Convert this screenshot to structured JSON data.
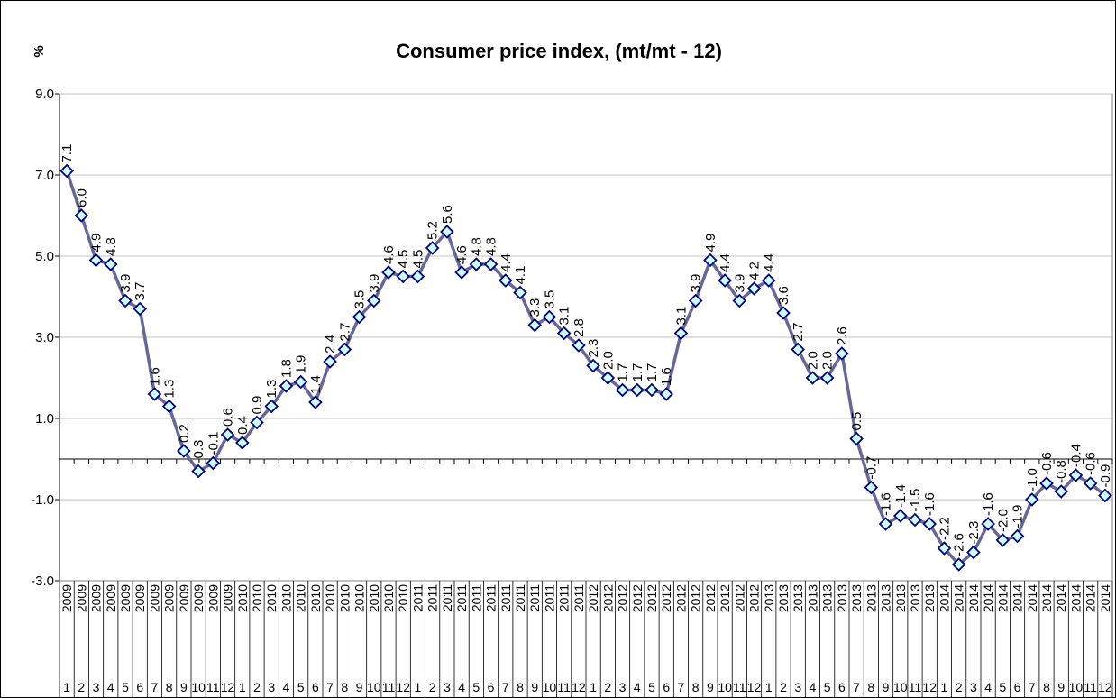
{
  "chart_data": {
    "type": "line",
    "title": "Consumer price index, (mt/mt - 12)",
    "y_label": "%",
    "categories": [
      "1",
      "2",
      "3",
      "4",
      "5",
      "6",
      "7",
      "8",
      "9",
      "10",
      "11",
      "12",
      "1",
      "2",
      "3",
      "4",
      "5",
      "6",
      "7",
      "8",
      "9",
      "10",
      "11",
      "12",
      "1",
      "2",
      "3",
      "4",
      "5",
      "6",
      "7",
      "8",
      "9",
      "10",
      "11",
      "12",
      "1",
      "2",
      "3",
      "4",
      "5",
      "6",
      "7",
      "8",
      "9",
      "10",
      "11",
      "12",
      "1",
      "2",
      "3",
      "4",
      "5",
      "6",
      "7",
      "8",
      "9",
      "10",
      "11",
      "12",
      "1",
      "2",
      "3",
      "4",
      "5",
      "6",
      "7",
      "8",
      "9",
      "10",
      "11",
      "12"
    ],
    "category_years": [
      "2009",
      "2009",
      "2009",
      "2009",
      "2009",
      "2009",
      "2009",
      "2009",
      "2009",
      "2009",
      "2009",
      "2009",
      "2010",
      "2010",
      "2010",
      "2010",
      "2010",
      "2010",
      "2010",
      "2010",
      "2010",
      "2010",
      "2010",
      "2010",
      "2011",
      "2011",
      "2011",
      "2011",
      "2011",
      "2011",
      "2011",
      "2011",
      "2011",
      "2011",
      "2011",
      "2011",
      "2012",
      "2012",
      "2012",
      "2012",
      "2012",
      "2012",
      "2012",
      "2012",
      "2012",
      "2012",
      "2012",
      "2012",
      "2013",
      "2013",
      "2013",
      "2013",
      "2013",
      "2013",
      "2013",
      "2013",
      "2013",
      "2013",
      "2013",
      "2013",
      "2014",
      "2014",
      "2014",
      "2014",
      "2014",
      "2014",
      "2014",
      "2014",
      "2014",
      "2014",
      "2014",
      "2014"
    ],
    "values": [
      7.1,
      6.0,
      4.9,
      4.8,
      3.9,
      3.7,
      1.6,
      1.3,
      0.2,
      -0.3,
      -0.1,
      0.6,
      0.4,
      0.9,
      1.3,
      1.8,
      1.9,
      1.4,
      2.4,
      2.7,
      3.5,
      3.9,
      4.6,
      4.5,
      4.5,
      5.2,
      5.6,
      4.6,
      4.8,
      4.8,
      4.4,
      4.1,
      3.3,
      3.5,
      3.1,
      2.8,
      2.3,
      2.0,
      1.7,
      1.7,
      1.7,
      1.6,
      3.1,
      3.9,
      4.9,
      4.4,
      3.9,
      4.2,
      4.4,
      3.6,
      2.7,
      2.0,
      2.0,
      2.6,
      0.5,
      -0.7,
      -1.6,
      -1.4,
      -1.5,
      -1.6,
      -2.2,
      -2.6,
      -2.3,
      -1.6,
      -2.0,
      -1.9,
      -1.0,
      -0.6,
      -0.8,
      -0.4,
      -0.6,
      -0.9
    ],
    "value_labels": [
      "7.1",
      "6.0",
      "4.9",
      "4.8",
      "3.9",
      "3.7",
      "1.6",
      "1.3",
      "0.2",
      "-0.3",
      "-0.1",
      "0.6",
      "0.4",
      "0.9",
      "1.3",
      "1.8",
      "1.9",
      "1.4",
      "2.4",
      "2.7",
      "3.5",
      "3.9",
      "4.6",
      "4.5",
      "4.5",
      "5.2",
      "5.6",
      "4.6",
      "4.8",
      "4.8",
      "4.4",
      "4.1",
      "3.3",
      "3.5",
      "3.1",
      "2.8",
      "2.3",
      "2.0",
      "1.7",
      "1.7",
      "1.7",
      "1.6",
      "3.1",
      "3.9",
      "4.9",
      "4.4",
      "3.9",
      "4.2",
      "4.4",
      "3.6",
      "2.7",
      "2.0",
      "2.0",
      "2.6",
      "0.5",
      "-0.7",
      "-1.6",
      "-1.4",
      "-1.5",
      "-1.6",
      "-2.2",
      "-2.6",
      "-2.3",
      "-1.6",
      "-2.0",
      "-1.9",
      "-1.0",
      "-0.6",
      "-0.8",
      "-0.4",
      "-0.6",
      "-0.9"
    ],
    "color": "#666699",
    "marker_fill": "#ccffff",
    "marker_stroke": "#000080",
    "ylim": [
      -3,
      9
    ],
    "yticks": [
      {
        "value": -3,
        "label": "-3.0"
      },
      {
        "value": -1,
        "label": "-1.0"
      },
      {
        "value": 1,
        "label": "1.0"
      },
      {
        "value": 3,
        "label": "3.0"
      },
      {
        "value": 5,
        "label": "5.0"
      },
      {
        "value": 7,
        "label": "7.0"
      },
      {
        "value": 9,
        "label": "9.0"
      }
    ],
    "grid": true
  }
}
